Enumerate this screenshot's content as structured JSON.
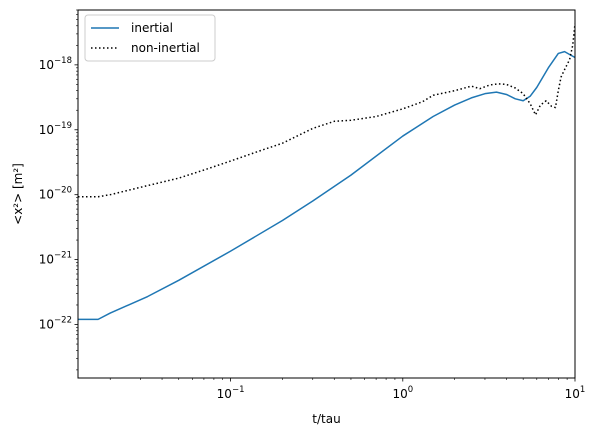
{
  "chart_data": {
    "type": "line",
    "xlabel": "t/tau",
    "ylabel": "<x²> [m²]",
    "xscale": "log",
    "yscale": "log",
    "xlim": [
      0.013,
      10
    ],
    "ylim": [
      1.5e-23,
      7e-18
    ],
    "grid": false,
    "legend_position": "top-left",
    "x_tick_labels": [
      {
        "value": 0.1,
        "base": "10",
        "exp": "−1"
      },
      {
        "value": 1,
        "base": "10",
        "exp": "0"
      },
      {
        "value": 10,
        "base": "10",
        "exp": "1"
      }
    ],
    "y_tick_labels": [
      {
        "value": 1e-22,
        "base": "10",
        "exp": "−22"
      },
      {
        "value": 1e-21,
        "base": "10",
        "exp": "−21"
      },
      {
        "value": 1e-20,
        "base": "10",
        "exp": "−20"
      },
      {
        "value": 1e-19,
        "base": "10",
        "exp": "−19"
      },
      {
        "value": 1e-18,
        "base": "10",
        "exp": "−18"
      }
    ],
    "series": [
      {
        "name": "inertial",
        "color": "#1f77b4",
        "style": "solid",
        "points": [
          [
            0.013,
            1.2e-22
          ],
          [
            0.017,
            1.2e-22
          ],
          [
            0.02,
            1.5e-22
          ],
          [
            0.033,
            2.7e-22
          ],
          [
            0.05,
            4.8e-22
          ],
          [
            0.1,
            1.35e-21
          ],
          [
            0.2,
            4e-21
          ],
          [
            0.3,
            8e-21
          ],
          [
            0.5,
            2e-20
          ],
          [
            1.0,
            8e-20
          ],
          [
            1.5,
            1.6e-19
          ],
          [
            2.0,
            2.4e-19
          ],
          [
            2.5,
            3.1e-19
          ],
          [
            3.0,
            3.6e-19
          ],
          [
            3.5,
            3.8e-19
          ],
          [
            4.0,
            3.5e-19
          ],
          [
            4.5,
            3e-19
          ],
          [
            5.0,
            2.8e-19
          ],
          [
            5.5,
            3.3e-19
          ],
          [
            6.0,
            4.5e-19
          ],
          [
            7.0,
            9e-19
          ],
          [
            8.0,
            1.5e-18
          ],
          [
            8.7,
            1.6e-18
          ],
          [
            9.5,
            1.4e-18
          ],
          [
            10.0,
            1.3e-18
          ]
        ]
      },
      {
        "name": "non-inertial",
        "color": "#000000",
        "style": "dotted",
        "points": [
          [
            0.013,
            9.3e-21
          ],
          [
            0.017,
            9.3e-21
          ],
          [
            0.02,
            1e-20
          ],
          [
            0.03,
            1.3e-20
          ],
          [
            0.05,
            1.8e-20
          ],
          [
            0.07,
            2.4e-20
          ],
          [
            0.1,
            3.3e-20
          ],
          [
            0.15,
            4.8e-20
          ],
          [
            0.2,
            6.2e-20
          ],
          [
            0.3,
            1.05e-19
          ],
          [
            0.4,
            1.35e-19
          ],
          [
            0.5,
            1.4e-19
          ],
          [
            0.7,
            1.6e-19
          ],
          [
            1.0,
            2.1e-19
          ],
          [
            1.3,
            2.7e-19
          ],
          [
            1.5,
            3.4e-19
          ],
          [
            2.0,
            4e-19
          ],
          [
            2.5,
            4.7e-19
          ],
          [
            2.8,
            4.3e-19
          ],
          [
            3.2,
            4.9e-19
          ],
          [
            3.6,
            5.1e-19
          ],
          [
            4.0,
            5e-19
          ],
          [
            4.5,
            4.4e-19
          ],
          [
            5.0,
            3.6e-19
          ],
          [
            5.5,
            2.5e-19
          ],
          [
            5.9,
            1.7e-19
          ],
          [
            6.3,
            2.4e-19
          ],
          [
            6.8,
            2.8e-19
          ],
          [
            7.3,
            2.3e-19
          ],
          [
            7.7,
            2.2e-19
          ],
          [
            8.0,
            4e-19
          ],
          [
            8.3,
            6.5e-19
          ],
          [
            8.8,
            9e-19
          ],
          [
            9.3,
            1.2e-18
          ],
          [
            9.7,
            2e-18
          ],
          [
            10.0,
            4.3e-18
          ]
        ]
      }
    ]
  }
}
